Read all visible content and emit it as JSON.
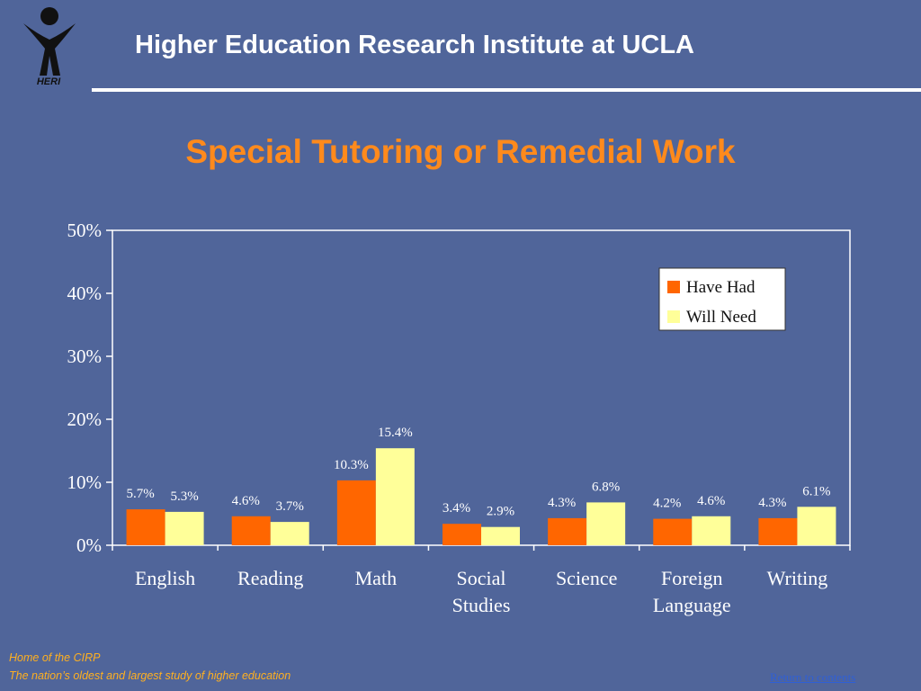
{
  "header": {
    "logo_text": "HERI",
    "title": "Higher Education Research Institute at UCLA"
  },
  "slide": {
    "title": "Special Tutoring or Remedial Work"
  },
  "chart_data": {
    "type": "bar",
    "categories": [
      [
        "English"
      ],
      [
        "Reading"
      ],
      [
        "Math"
      ],
      [
        "Social",
        "Studies"
      ],
      [
        "Science"
      ],
      [
        "Foreign",
        "Language"
      ],
      [
        "Writing"
      ]
    ],
    "series": [
      {
        "name": "Have Had",
        "color": "#ff6600",
        "values": [
          5.7,
          4.6,
          10.3,
          3.4,
          4.3,
          4.2,
          4.3
        ],
        "labels": [
          "5.7%",
          "4.6%",
          "10.3%",
          "3.4%",
          "4.3%",
          "4.2%",
          "4.3%"
        ]
      },
      {
        "name": "Will Need",
        "color": "#ffff99",
        "values": [
          5.3,
          3.7,
          15.4,
          2.9,
          6.8,
          4.6,
          6.1
        ],
        "labels": [
          "5.3%",
          "3.7%",
          "15.4%",
          "2.9%",
          "6.8%",
          "4.6%",
          "6.1%"
        ]
      }
    ],
    "y_ticks": [
      "0%",
      "10%",
      "20%",
      "30%",
      "40%",
      "50%"
    ],
    "ylim": [
      0,
      50
    ],
    "grid": false,
    "legend_position": "top-right",
    "xlabel": "",
    "ylabel": ""
  },
  "footer": {
    "line1": "Home of the CIRP",
    "line2": "The nation’s oldest and largest study of higher education",
    "return_link": "Return to contents"
  }
}
